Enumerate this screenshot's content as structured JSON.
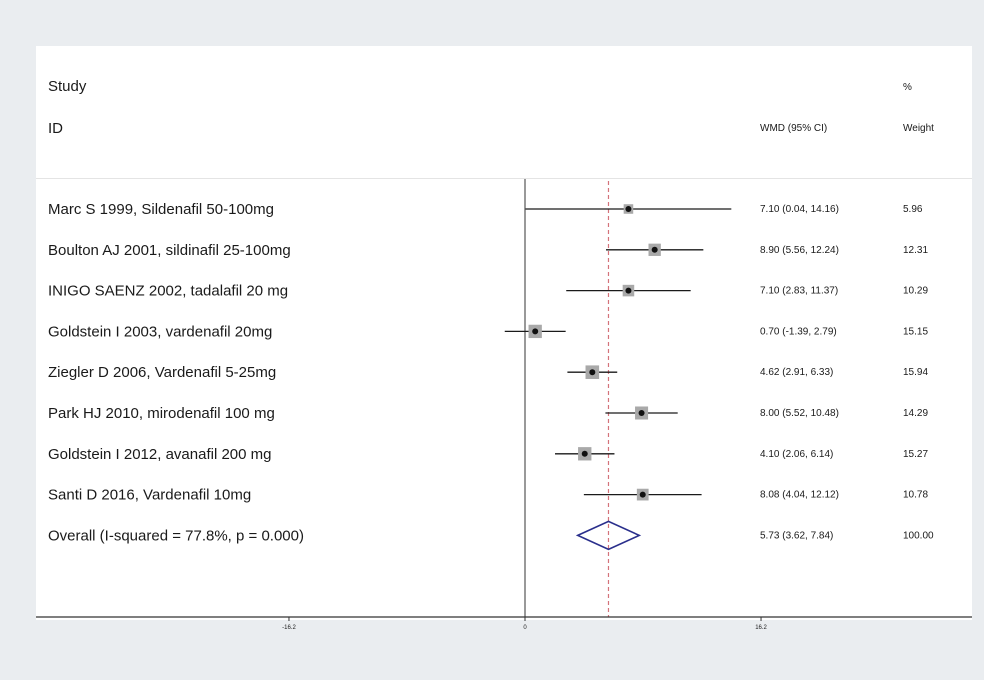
{
  "header": {
    "study": "Study",
    "id": "ID",
    "percent": "%",
    "effect": "WMD (95% CI)",
    "weight": "Weight"
  },
  "chart_data": {
    "type": "forest",
    "effect_measure": "WMD",
    "null_value": 0,
    "xlim": [
      -16.2,
      16.2
    ],
    "x_ticks": [
      {
        "value": -16.2,
        "label": "-16.2"
      },
      {
        "value": 0,
        "label": "0"
      },
      {
        "value": 16.2,
        "label": "16.2"
      }
    ],
    "studies": [
      {
        "label": "Marc S 1999, Sildenafil 50-100mg",
        "wmd": 7.1,
        "ci_low": 0.04,
        "ci_high": 14.16,
        "ci_text": "7.10 (0.04, 14.16)",
        "weight": 5.96,
        "weight_text": "5.96"
      },
      {
        "label": "Boulton AJ 2001, sildinafil 25-100mg",
        "wmd": 8.9,
        "ci_low": 5.56,
        "ci_high": 12.24,
        "ci_text": "8.90 (5.56, 12.24)",
        "weight": 12.31,
        "weight_text": "12.31"
      },
      {
        "label": "INIGO SAENZ 2002, tadalafil 20 mg",
        "wmd": 7.1,
        "ci_low": 2.83,
        "ci_high": 11.37,
        "ci_text": "7.10 (2.83, 11.37)",
        "weight": 10.29,
        "weight_text": "10.29"
      },
      {
        "label": "Goldstein I 2003, vardenafil 20mg",
        "wmd": 0.7,
        "ci_low": -1.39,
        "ci_high": 2.79,
        "ci_text": "0.70 (-1.39, 2.79)",
        "weight": 15.15,
        "weight_text": "15.15"
      },
      {
        "label": "Ziegler D 2006, Vardenafil 5-25mg",
        "wmd": 4.62,
        "ci_low": 2.91,
        "ci_high": 6.33,
        "ci_text": "4.62 (2.91, 6.33)",
        "weight": 15.94,
        "weight_text": "15.94"
      },
      {
        "label": "Park HJ 2010, mirodenafil 100 mg",
        "wmd": 8.0,
        "ci_low": 5.52,
        "ci_high": 10.48,
        "ci_text": "8.00 (5.52, 10.48)",
        "weight": 14.29,
        "weight_text": "14.29"
      },
      {
        "label": "Goldstein I 2012, avanafil 200 mg",
        "wmd": 4.1,
        "ci_low": 2.06,
        "ci_high": 6.14,
        "ci_text": "4.10 (2.06, 6.14)",
        "weight": 15.27,
        "weight_text": "15.27"
      },
      {
        "label": "Santi D 2016, Vardenafil 10mg",
        "wmd": 8.08,
        "ci_low": 4.04,
        "ci_high": 12.12,
        "ci_text": "8.08 (4.04, 12.12)",
        "weight": 10.78,
        "weight_text": "10.78"
      }
    ],
    "overall": {
      "label": "Overall  (I-squared = 77.8%, p = 0.000)",
      "wmd": 5.73,
      "ci_low": 3.62,
      "ci_high": 7.84,
      "ci_text": "5.73 (3.62, 7.84)",
      "weight": 100.0,
      "weight_text": "100.00"
    },
    "colors": {
      "study_line": "#1a1a1a",
      "study_box": "#a9a9a9",
      "point": "#111111",
      "diamond": "#2a2f8c",
      "overall_line": "#d4737a",
      "axis": "#333333"
    }
  }
}
